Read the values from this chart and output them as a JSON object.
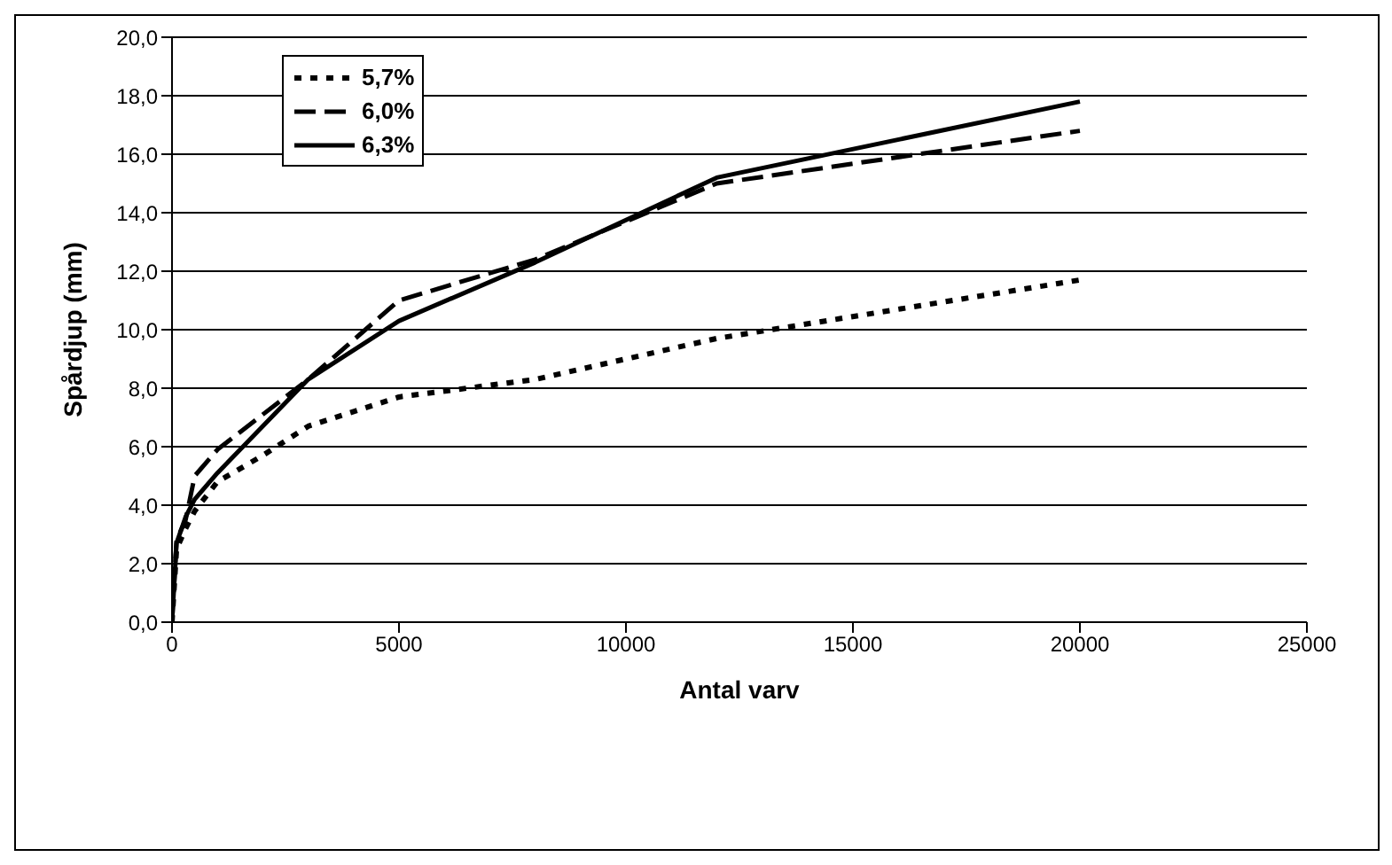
{
  "chart_data": {
    "type": "line",
    "xlabel": "Antal varv",
    "ylabel": "Spårdjup (mm)",
    "xlim": [
      0,
      25000
    ],
    "xticks": [
      0,
      5000,
      10000,
      15000,
      20000,
      25000
    ],
    "ylim": [
      0,
      20
    ],
    "yticks": [
      {
        "value": 0,
        "label": "0,0"
      },
      {
        "value": 2,
        "label": "2,0"
      },
      {
        "value": 4,
        "label": "4,0"
      },
      {
        "value": 6,
        "label": "6,0"
      },
      {
        "value": 8,
        "label": "8,0"
      },
      {
        "value": 10,
        "label": "10,0"
      },
      {
        "value": 12,
        "label": "12,0"
      },
      {
        "value": 14,
        "label": "14,0"
      },
      {
        "value": 16,
        "label": "16,0"
      },
      {
        "value": 18,
        "label": "18,0"
      },
      {
        "value": 20,
        "label": "20,0"
      }
    ],
    "grid": "y",
    "legend": "top left",
    "marker": "none",
    "series": [
      {
        "name": "5,7%",
        "color": "#000000",
        "line_style": "dotted",
        "x": [
          0,
          100,
          300,
          500,
          1000,
          2000,
          3000,
          5000,
          8000,
          12000,
          20000
        ],
        "values": [
          0,
          2.5,
          3.2,
          3.8,
          4.8,
          5.7,
          6.7,
          7.7,
          8.3,
          9.7,
          11.7
        ]
      },
      {
        "name": "6,0%",
        "color": "#000000",
        "line_style": "dashed",
        "x": [
          0,
          100,
          300,
          500,
          1000,
          3000,
          5000,
          8000,
          12000,
          20000
        ],
        "values": [
          0,
          2.8,
          3.5,
          5.0,
          5.9,
          8.3,
          11.0,
          12.4,
          15.0,
          16.8
        ]
      },
      {
        "name": "6,3%",
        "color": "#000000",
        "line_style": "solid",
        "x": [
          0,
          100,
          300,
          500,
          1000,
          3000,
          5000,
          8000,
          12000,
          20000
        ],
        "values": [
          0,
          2.7,
          3.6,
          4.2,
          5.1,
          8.3,
          10.3,
          12.3,
          15.2,
          17.8
        ]
      }
    ]
  }
}
